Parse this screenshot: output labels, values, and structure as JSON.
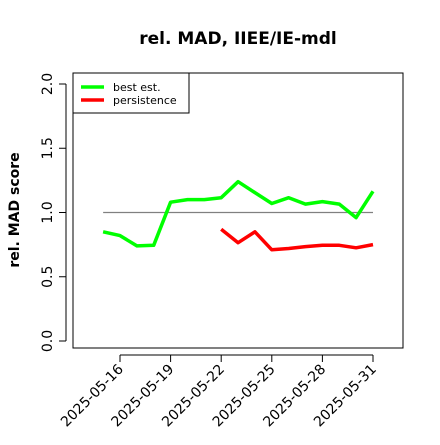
{
  "chart_data": {
    "type": "line",
    "title": "rel. MAD, IIEE/IE-mdl",
    "xlabel": "",
    "ylabel": "rel. MAD score",
    "ylim": [
      0.0,
      2.0
    ],
    "yticks": [
      0.0,
      0.5,
      1.0,
      1.5,
      2.0
    ],
    "ytick_labels": [
      "0.0",
      "0.5",
      "1.0",
      "1.5",
      "2.0"
    ],
    "xlim": [
      "2025-05-14",
      "2025-06-01"
    ],
    "xticks": [
      "2025-05-16",
      "2025-05-19",
      "2025-05-22",
      "2025-05-25",
      "2025-05-28",
      "2025-05-31"
    ],
    "grid": false,
    "legend_position": "top-left",
    "reference_line": {
      "y": 1.0,
      "x_start": "2025-05-15",
      "x_end": "2025-05-31",
      "color": "#808080"
    },
    "series": [
      {
        "name": "best est.",
        "color": "#00ff00",
        "points": [
          {
            "x": "2025-05-15",
            "y": 0.85
          },
          {
            "x": "2025-05-16",
            "y": 0.82
          },
          {
            "x": "2025-05-17",
            "y": 0.74
          },
          {
            "x": "2025-05-18",
            "y": 0.745
          },
          {
            "x": "2025-05-19",
            "y": 1.08
          },
          {
            "x": "2025-05-20",
            "y": 1.1
          },
          {
            "x": "2025-05-21",
            "y": 1.1
          },
          {
            "x": "2025-05-22",
            "y": 1.115
          },
          {
            "x": "2025-05-23",
            "y": 1.24
          },
          {
            "x": "2025-05-24",
            "y": 1.155
          },
          {
            "x": "2025-05-25",
            "y": 1.07
          },
          {
            "x": "2025-05-26",
            "y": 1.115
          },
          {
            "x": "2025-05-27",
            "y": 1.065
          },
          {
            "x": "2025-05-28",
            "y": 1.085
          },
          {
            "x": "2025-05-29",
            "y": 1.065
          },
          {
            "x": "2025-05-30",
            "y": 0.96
          },
          {
            "x": "2025-05-31",
            "y": 1.165
          }
        ]
      },
      {
        "name": "persistence",
        "color": "#ff0000",
        "points": [
          {
            "x": "2025-05-22",
            "y": 0.87
          },
          {
            "x": "2025-05-23",
            "y": 0.765
          },
          {
            "x": "2025-05-24",
            "y": 0.85
          },
          {
            "x": "2025-05-25",
            "y": 0.71
          },
          {
            "x": "2025-05-26",
            "y": 0.72
          },
          {
            "x": "2025-05-27",
            "y": 0.735
          },
          {
            "x": "2025-05-28",
            "y": 0.745
          },
          {
            "x": "2025-05-29",
            "y": 0.745
          },
          {
            "x": "2025-05-30",
            "y": 0.725
          },
          {
            "x": "2025-05-31",
            "y": 0.75
          }
        ]
      }
    ]
  }
}
